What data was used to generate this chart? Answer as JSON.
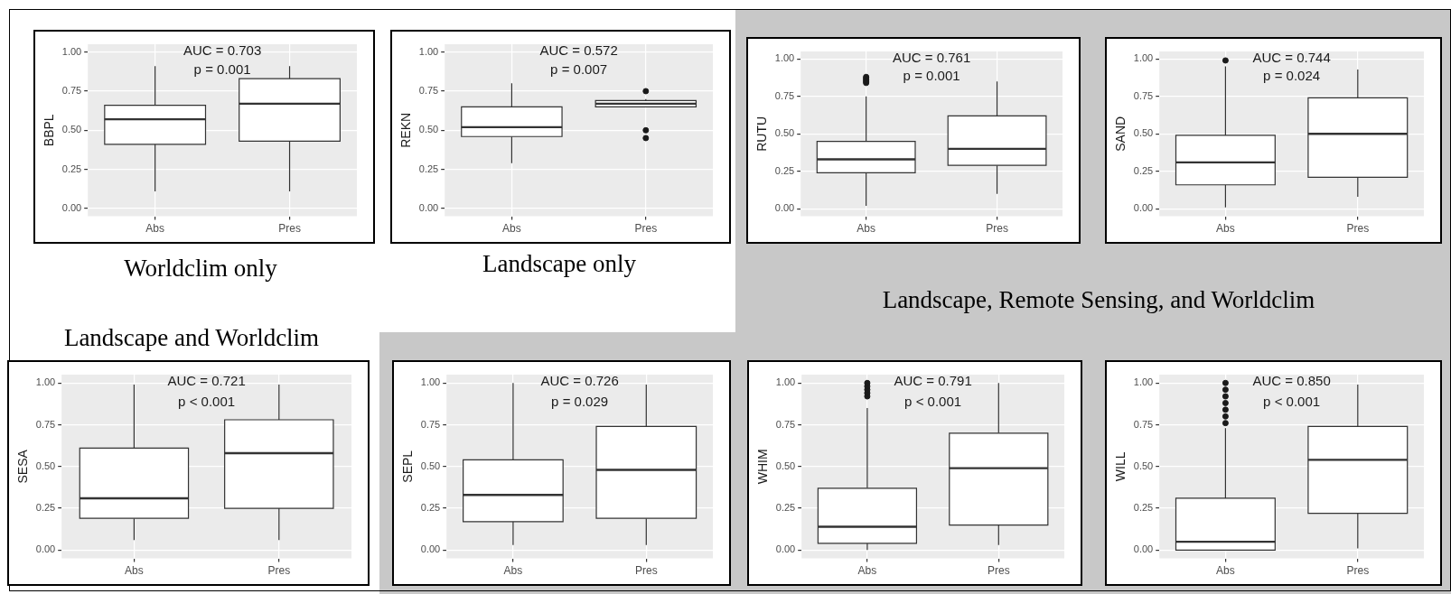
{
  "chart_data": [
    {
      "type": "box",
      "ylabel": "BBPL",
      "categories": [
        "Abs",
        "Pres"
      ],
      "ylim": [
        -0.05,
        1.05
      ],
      "yticks": [
        {
          "value": 0,
          "label": "0.00"
        },
        {
          "value": 0.25,
          "label": "0.25"
        },
        {
          "value": 0.5,
          "label": "0.50"
        },
        {
          "value": 0.75,
          "label": "0.75"
        },
        {
          "value": 1,
          "label": "1.00"
        }
      ],
      "grid": true,
      "annotations": [
        "AUC = 0.703",
        "p = 0.001",
        "Worldclim only"
      ],
      "boxes": [
        {
          "low": 0.11,
          "q1": 0.41,
          "median": 0.57,
          "q3": 0.66,
          "high": 0.91
        },
        {
          "low": 0.11,
          "q1": 0.43,
          "median": 0.67,
          "q3": 0.83,
          "high": 0.91
        }
      ]
    },
    {
      "type": "box",
      "ylabel": "REKN",
      "categories": [
        "Abs",
        "Pres"
      ],
      "ylim": [
        -0.05,
        1.05
      ],
      "yticks": [
        {
          "value": 0,
          "label": "0.00"
        },
        {
          "value": 0.25,
          "label": "0.25"
        },
        {
          "value": 0.5,
          "label": "0.50"
        },
        {
          "value": 0.75,
          "label": "0.75"
        },
        {
          "value": 1,
          "label": "1.00"
        }
      ],
      "grid": true,
      "annotations": [
        "AUC = 0.572",
        "p = 0.007",
        "Landscape only"
      ],
      "boxes": [
        {
          "low": 0.29,
          "q1": 0.46,
          "median": 0.52,
          "q3": 0.65,
          "high": 0.8
        },
        {
          "low": 0.65,
          "q1": 0.65,
          "median": 0.67,
          "q3": 0.69,
          "high": 0.7,
          "outliers": [
            0.75,
            0.5,
            0.45
          ]
        }
      ]
    },
    {
      "type": "box",
      "ylabel": "RUTU",
      "categories": [
        "Abs",
        "Pres"
      ],
      "ylim": [
        -0.05,
        1.05
      ],
      "yticks": [
        {
          "value": 0,
          "label": "0.00"
        },
        {
          "value": 0.25,
          "label": "0.25"
        },
        {
          "value": 0.5,
          "label": "0.50"
        },
        {
          "value": 0.75,
          "label": "0.75"
        },
        {
          "value": 1,
          "label": "1.00"
        }
      ],
      "grid": true,
      "annotations": [
        "AUC = 0.761",
        "p = 0.001",
        "Landscape, Remote Sensing, and Worldclim"
      ],
      "boxes": [
        {
          "low": 0.02,
          "q1": 0.24,
          "median": 0.33,
          "q3": 0.45,
          "high": 0.75,
          "outliers": [
            0.84,
            0.85,
            0.86,
            0.87,
            0.88
          ]
        },
        {
          "low": 0.1,
          "q1": 0.29,
          "median": 0.4,
          "q3": 0.62,
          "high": 0.85
        }
      ]
    },
    {
      "type": "box",
      "ylabel": "SAND",
      "categories": [
        "Abs",
        "Pres"
      ],
      "ylim": [
        -0.05,
        1.05
      ],
      "yticks": [
        {
          "value": 0,
          "label": "0.00"
        },
        {
          "value": 0.25,
          "label": "0.25"
        },
        {
          "value": 0.5,
          "label": "0.50"
        },
        {
          "value": 0.75,
          "label": "0.75"
        },
        {
          "value": 1,
          "label": "1.00"
        }
      ],
      "grid": true,
      "annotations": [
        "AUC = 0.744",
        "p = 0.024"
      ],
      "boxes": [
        {
          "low": 0.01,
          "q1": 0.16,
          "median": 0.31,
          "q3": 0.49,
          "high": 0.95,
          "outliers": [
            0.99
          ]
        },
        {
          "low": 0.08,
          "q1": 0.21,
          "median": 0.5,
          "q3": 0.74,
          "high": 0.93
        }
      ]
    },
    {
      "type": "box",
      "ylabel": "SESA",
      "categories": [
        "Abs",
        "Pres"
      ],
      "ylim": [
        -0.05,
        1.05
      ],
      "yticks": [
        {
          "value": 0,
          "label": "0.00"
        },
        {
          "value": 0.25,
          "label": "0.25"
        },
        {
          "value": 0.5,
          "label": "0.50"
        },
        {
          "value": 0.75,
          "label": "0.75"
        },
        {
          "value": 1,
          "label": "1.00"
        }
      ],
      "grid": true,
      "annotations": [
        "AUC = 0.721",
        "p < 0.001",
        "Landscape and Worldclim"
      ],
      "boxes": [
        {
          "low": 0.06,
          "q1": 0.19,
          "median": 0.31,
          "q3": 0.61,
          "high": 0.99
        },
        {
          "low": 0.06,
          "q1": 0.25,
          "median": 0.58,
          "q3": 0.78,
          "high": 0.99
        }
      ]
    },
    {
      "type": "box",
      "ylabel": "SEPL",
      "categories": [
        "Abs",
        "Pres"
      ],
      "ylim": [
        -0.05,
        1.05
      ],
      "yticks": [
        {
          "value": 0,
          "label": "0.00"
        },
        {
          "value": 0.25,
          "label": "0.25"
        },
        {
          "value": 0.5,
          "label": "0.50"
        },
        {
          "value": 0.75,
          "label": "0.75"
        },
        {
          "value": 1,
          "label": "1.00"
        }
      ],
      "grid": true,
      "annotations": [
        "AUC = 0.726",
        "p = 0.029"
      ],
      "boxes": [
        {
          "low": 0.03,
          "q1": 0.17,
          "median": 0.33,
          "q3": 0.54,
          "high": 1.0
        },
        {
          "low": 0.03,
          "q1": 0.19,
          "median": 0.48,
          "q3": 0.74,
          "high": 0.99
        }
      ]
    },
    {
      "type": "box",
      "ylabel": "WHIM",
      "categories": [
        "Abs",
        "Pres"
      ],
      "ylim": [
        -0.05,
        1.05
      ],
      "yticks": [
        {
          "value": 0,
          "label": "0.00"
        },
        {
          "value": 0.25,
          "label": "0.25"
        },
        {
          "value": 0.5,
          "label": "0.50"
        },
        {
          "value": 0.75,
          "label": "0.75"
        },
        {
          "value": 1,
          "label": "1.00"
        }
      ],
      "grid": true,
      "annotations": [
        "AUC = 0.791",
        "p < 0.001"
      ],
      "boxes": [
        {
          "low": 0.0,
          "q1": 0.04,
          "median": 0.14,
          "q3": 0.37,
          "high": 0.85,
          "outliers": [
            0.92,
            0.94,
            0.96,
            0.98,
            1.0
          ]
        },
        {
          "low": 0.03,
          "q1": 0.15,
          "median": 0.49,
          "q3": 0.7,
          "high": 1.0
        }
      ]
    },
    {
      "type": "box",
      "ylabel": "WILL",
      "categories": [
        "Abs",
        "Pres"
      ],
      "ylim": [
        -0.05,
        1.05
      ],
      "yticks": [
        {
          "value": 0,
          "label": "0.00"
        },
        {
          "value": 0.25,
          "label": "0.25"
        },
        {
          "value": 0.5,
          "label": "0.50"
        },
        {
          "value": 0.75,
          "label": "0.75"
        },
        {
          "value": 1,
          "label": "1.00"
        }
      ],
      "grid": true,
      "annotations": [
        "AUC = 0.850",
        "p < 0.001"
      ],
      "boxes": [
        {
          "low": 0.0,
          "q1": 0.0,
          "median": 0.05,
          "q3": 0.31,
          "high": 0.73,
          "outliers": [
            0.76,
            0.8,
            0.84,
            0.88,
            0.92,
            0.96,
            1.0
          ]
        },
        {
          "low": 0.01,
          "q1": 0.22,
          "median": 0.54,
          "q3": 0.74,
          "high": 0.99
        }
      ]
    }
  ]
}
